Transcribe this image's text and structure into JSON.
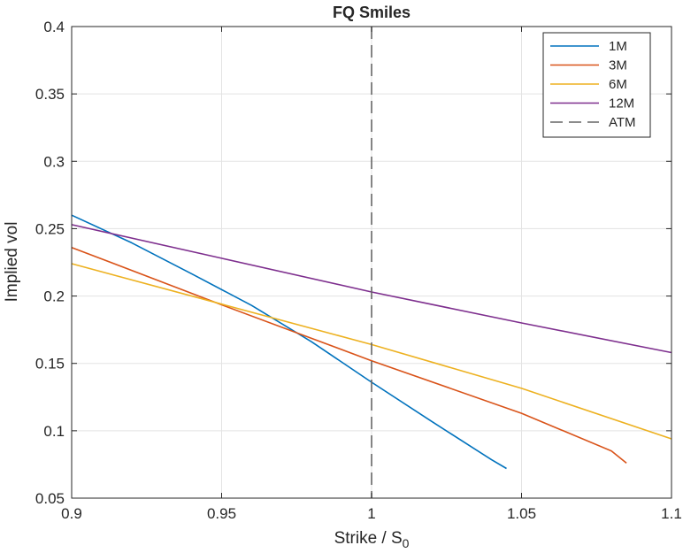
{
  "chart_data": {
    "type": "line",
    "title": "FQ Smiles",
    "xlabel": "Strike  /  S",
    "xlabel_subscript": "0",
    "ylabel": "Implied vol",
    "xlim": [
      0.9,
      1.1
    ],
    "ylim": [
      0.05,
      0.4
    ],
    "grid": true,
    "legend_location": "top-right",
    "x_ticks": [
      0.9,
      0.95,
      1.0,
      1.05,
      1.1
    ],
    "x_tick_labels": [
      "0.9",
      "0.95",
      "1",
      "1.05",
      "1.1"
    ],
    "y_ticks": [
      0.05,
      0.1,
      0.15,
      0.2,
      0.25,
      0.3,
      0.35,
      0.4
    ],
    "y_tick_labels": [
      "0.05",
      "0.1",
      "0.15",
      "0.2",
      "0.25",
      "0.3",
      "0.35",
      "0.4"
    ],
    "series": [
      {
        "name": "1M",
        "color": "#0072BD",
        "x": [
          0.9,
          0.92,
          0.94,
          0.96,
          0.98,
          1.0,
          1.02,
          1.04,
          1.045
        ],
        "y": [
          0.26,
          0.2395,
          0.2165,
          0.193,
          0.166,
          0.136,
          0.107,
          0.0785,
          0.072
        ]
      },
      {
        "name": "3M",
        "color": "#D95319",
        "x": [
          0.9,
          0.95,
          1.0,
          1.05,
          1.08,
          1.085
        ],
        "y": [
          0.236,
          0.1935,
          0.152,
          0.113,
          0.085,
          0.076
        ]
      },
      {
        "name": "6M",
        "color": "#EDB120",
        "x": [
          0.9,
          0.95,
          1.0,
          1.05,
          1.1
        ],
        "y": [
          0.224,
          0.194,
          0.164,
          0.1315,
          0.094
        ]
      },
      {
        "name": "12M",
        "color": "#7E2F8E",
        "x": [
          0.9,
          0.95,
          1.0,
          1.05,
          1.1
        ],
        "y": [
          0.253,
          0.228,
          0.203,
          0.18,
          0.158
        ]
      }
    ],
    "reference_line": {
      "name": "ATM",
      "x": 1.0,
      "color": "#666666",
      "style": "dashed"
    }
  }
}
